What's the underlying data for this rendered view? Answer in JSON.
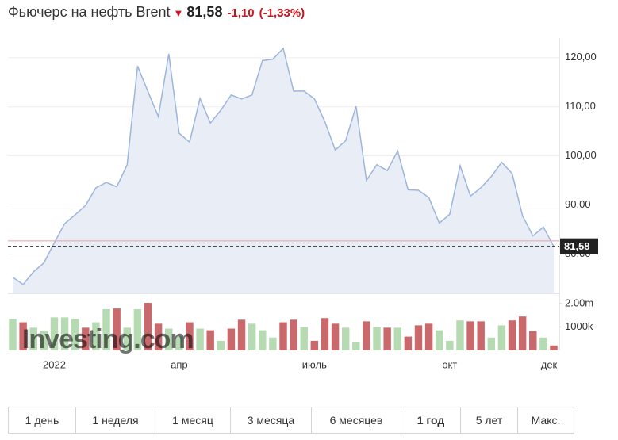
{
  "header": {
    "title": "Фьючерс на нефть Brent",
    "price": "81,58",
    "change": "-1,10",
    "change_pct": "(-1,33%)"
  },
  "chart_data": {
    "type": "area",
    "categories": [
      null,
      null,
      null,
      null,
      "2022",
      null,
      null,
      null,
      null,
      null,
      null,
      null,
      null,
      null,
      null,
      null,
      "апр",
      null,
      null,
      null,
      null,
      null,
      null,
      null,
      null,
      null,
      null,
      null,
      null,
      "июль",
      null,
      null,
      null,
      null,
      null,
      null,
      null,
      null,
      null,
      null,
      null,
      null,
      "окт",
      null,
      null,
      null,
      null,
      null,
      null,
      null,
      null,
      null,
      "дек"
    ],
    "series": [
      {
        "color": "#9db5dc",
        "fill": "#e9edf6",
        "values": [
          75.3,
          73.8,
          76.4,
          78.2,
          82.3,
          86.2,
          88.0,
          89.9,
          93.5,
          94.6,
          93.7,
          98.2,
          118.3,
          113.1,
          108.0,
          120.8,
          104.6,
          102.8,
          111.7,
          106.7,
          109.3,
          112.4,
          111.6,
          112.4,
          119.4,
          119.7,
          121.9,
          113.2,
          113.2,
          111.6,
          107.0,
          101.2,
          103.1,
          110.1,
          95.0,
          98.2,
          97.0,
          101.0,
          93.1,
          93.0,
          91.5,
          86.3,
          88.1,
          98.0,
          91.8,
          93.5,
          95.8,
          98.7,
          96.4,
          87.8,
          83.7,
          85.5,
          81.58
        ]
      }
    ],
    "ylim": [
      72,
      124
    ],
    "yticks": [
      {
        "value": 80,
        "label": "80,00"
      },
      {
        "value": 90,
        "label": "90,00"
      },
      {
        "value": 100,
        "label": "100,00"
      },
      {
        "value": 110,
        "label": "110,00"
      },
      {
        "value": 120,
        "label": "120,00"
      }
    ],
    "grid": true,
    "last": {
      "value": 81.58,
      "label": "81,58"
    },
    "previous_close": 82.68,
    "volume": {
      "values": [
        1340000,
        1200000,
        970000,
        830000,
        1410000,
        1410000,
        1340000,
        970000,
        1200000,
        1760000,
        1790000,
        970000,
        1760000,
        2030000,
        1140000,
        930000,
        590000,
        1200000,
        930000,
        860000,
        410000,
        930000,
        1310000,
        1140000,
        860000,
        550000,
        1200000,
        1310000,
        1000000,
        410000,
        1380000,
        1140000,
        970000,
        340000,
        1240000,
        1000000,
        970000,
        970000,
        590000,
        1070000,
        1140000,
        860000,
        410000,
        1280000,
        1240000,
        1240000,
        550000,
        1070000,
        1280000,
        1450000,
        830000,
        550000,
        210000
      ],
      "colors": [
        "#b6dbb2",
        "#c9696c",
        "#b6dbb2",
        "#b6dbb2",
        "#b6dbb2",
        "#b6dbb2",
        "#b6dbb2",
        "#c9696c",
        "#b6dbb2",
        "#b6dbb2",
        "#c9696c",
        "#b6dbb2",
        "#b6dbb2",
        "#c9696c",
        "#c9696c",
        "#b6dbb2",
        "#b6dbb2",
        "#c9696c",
        "#b6dbb2",
        "#c9696c",
        "#b6dbb2",
        "#c9696c",
        "#c9696c",
        "#b6dbb2",
        "#b6dbb2",
        "#b6dbb2",
        "#c9696c",
        "#c9696c",
        "#b6dbb2",
        "#c9696c",
        "#c9696c",
        "#c9696c",
        "#b6dbb2",
        "#b6dbb2",
        "#c9696c",
        "#b6dbb2",
        "#c9696c",
        "#b6dbb2",
        "#c9696c",
        "#c9696c",
        "#c9696c",
        "#b6dbb2",
        "#b6dbb2",
        "#b6dbb2",
        "#c9696c",
        "#c9696c",
        "#b6dbb2",
        "#b6dbb2",
        "#c9696c",
        "#c9696c",
        "#c9696c",
        "#b6dbb2",
        "#c9696c"
      ],
      "ylim": [
        0,
        2370000
      ],
      "yticks": [
        {
          "value": 1000000,
          "label": "1000k"
        },
        {
          "value": 2000000,
          "label": "2.00m"
        }
      ]
    },
    "watermark": "Investing.com"
  },
  "buttons": [
    "1 день",
    "1 неделя",
    "1 месяц",
    "3 месяца",
    "6 месяцев",
    "1 год",
    "5 лет",
    "Макс."
  ],
  "selected_button": 5
}
